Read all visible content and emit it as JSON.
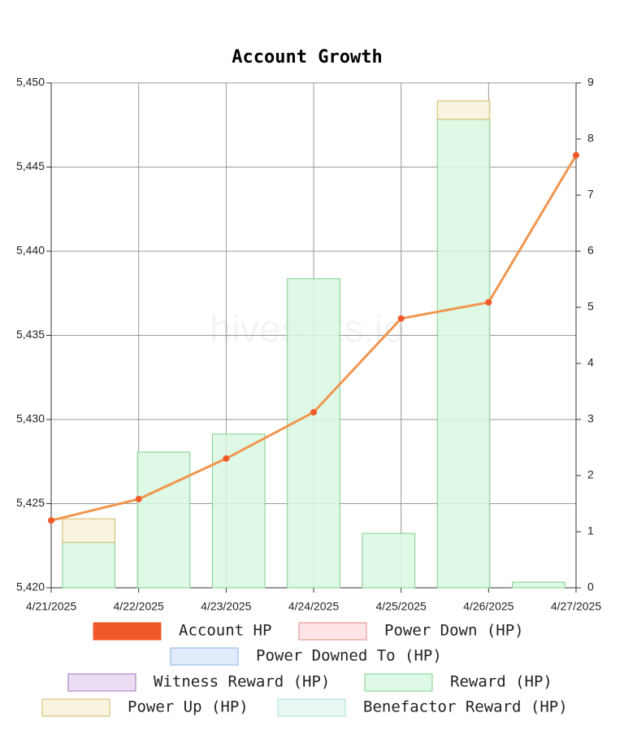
{
  "chart_data": {
    "type": "combo",
    "title": "Account Growth",
    "watermark": "hivestats.io",
    "categories": [
      "4/21/2025",
      "4/22/2025",
      "4/23/2025",
      "4/24/2025",
      "4/25/2025",
      "4/26/2025",
      "4/27/2025"
    ],
    "ylim": [
      5420,
      5450
    ],
    "yticks": [
      {
        "value": 5420,
        "label": "5,420"
      },
      {
        "value": 5425,
        "label": "5,425"
      },
      {
        "value": 5430,
        "label": "5,430"
      },
      {
        "value": 5435,
        "label": "5,435"
      },
      {
        "value": 5440,
        "label": "5,440"
      },
      {
        "value": 5445,
        "label": "5,445"
      },
      {
        "value": 5450,
        "label": "5,450"
      }
    ],
    "y2lim": [
      0,
      9
    ],
    "y2ticks": [
      0,
      1,
      2,
      3,
      4,
      5,
      6,
      7,
      8,
      9
    ],
    "grid": true,
    "series": [
      {
        "name": "Account HP",
        "type": "line",
        "color": "#f05a28",
        "line_color": "#f0964f",
        "values": [
          5424.0,
          5425.27,
          5427.68,
          5430.43,
          5436.0,
          5436.96,
          5445.7
        ]
      },
      {
        "name": "Power Down (HP)",
        "type": "bar",
        "color": "#ffe0e0",
        "border": "#e08a8a"
      },
      {
        "name": "Power Downed To (HP)",
        "type": "bar",
        "color": "#dce8fb",
        "border": "#8ab0e8"
      },
      {
        "name": "Witness Reward (HP)",
        "type": "bar",
        "color": "#e8d8f0",
        "border": "#a070c0"
      },
      {
        "name": "Reward (HP)",
        "type": "bar",
        "axis": "y2",
        "color": "#d8f8e0",
        "border": "#7fcf8a",
        "values": [
          0.81,
          2.42,
          2.74,
          5.51,
          0.97,
          8.35,
          0.1
        ]
      },
      {
        "name": "Power Up (HP)",
        "type": "bar",
        "axis": "y2",
        "color": "#f7f2d9",
        "border": "#d4b96a",
        "values": [
          0.42,
          null,
          null,
          null,
          null,
          0.33,
          null
        ]
      },
      {
        "name": "Benefactor Reward (HP)",
        "type": "bar",
        "color": "#e5f6f3",
        "border": "#a8e0d8"
      }
    ]
  }
}
